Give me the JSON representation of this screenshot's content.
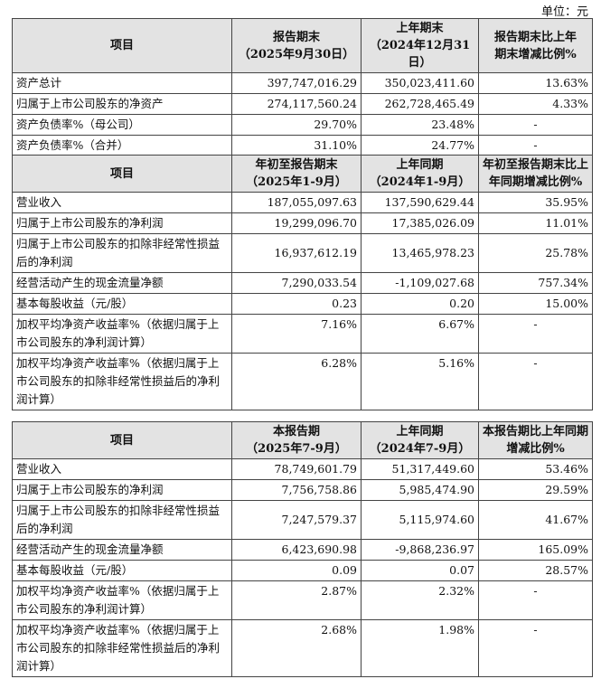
{
  "unit": "单位：元",
  "table1": {
    "headers": [
      "项目",
      "报告期末\n（2025年9月30日）",
      "上年期末\n（2024年12月31日）",
      "报告期末比上年\n期末增减比例%"
    ],
    "rows": [
      {
        "label": "资产总计",
        "v1": "397,747,016.29",
        "v2": "350,023,411.60",
        "v3": "13.63%"
      },
      {
        "label": "归属于上市公司股东的净资产",
        "v1": "274,117,560.24",
        "v2": "262,728,465.49",
        "v3": "4.33%"
      },
      {
        "label": "资产负债率%（母公司）",
        "v1": "29.70%",
        "v2": "23.48%",
        "v3": "-"
      },
      {
        "label": "资产负债率%（合并）",
        "v1": "31.10%",
        "v2": "24.77%",
        "v3": "-"
      }
    ]
  },
  "table2": {
    "headers": [
      "项目",
      "年初至报告期末\n（2025年1-9月）",
      "上年同期\n（2024年1-9月）",
      "年初至报告期末比上\n年同期增减比例%"
    ],
    "rows": [
      {
        "label": "营业收入",
        "v1": "187,055,097.63",
        "v2": "137,590,629.44",
        "v3": "35.95%"
      },
      {
        "label": "归属于上市公司股东的净利润",
        "v1": "19,299,096.70",
        "v2": "17,385,026.09",
        "v3": "11.01%"
      },
      {
        "label": "归属于上市公司股东的扣除非经常性损益后的净利润",
        "v1": "16,937,612.19",
        "v2": "13,465,978.23",
        "v3": "25.78%"
      },
      {
        "label": "经营活动产生的现金流量净额",
        "v1": "7,290,033.54",
        "v2": "-1,109,027.68",
        "v3": "757.34%"
      },
      {
        "label": "基本每股收益（元/股）",
        "v1": "0.23",
        "v2": "0.20",
        "v3": "15.00%"
      },
      {
        "label": "加权平均净资产收益率%（依据归属于上市公司股东的净利润计算）",
        "v1": "7.16%",
        "v2": "6.67%",
        "v3": "-"
      },
      {
        "label": "加权平均净资产收益率%（依据归属于上市公司股东的扣除非经常性损益后的净利润计算）",
        "v1": "6.28%",
        "v2": "5.16%",
        "v3": "-"
      }
    ]
  },
  "table3": {
    "headers": [
      "项目",
      "本报告期\n（2025年7-9月）",
      "上年同期\n（2024年7-9月）",
      "本报告期比上年同期\n增减比例%"
    ],
    "rows": [
      {
        "label": "营业收入",
        "v1": "78,749,601.79",
        "v2": "51,317,449.60",
        "v3": "53.46%"
      },
      {
        "label": "归属于上市公司股东的净利润",
        "v1": "7,756,758.86",
        "v2": "5,985,474.90",
        "v3": "29.59%"
      },
      {
        "label": "归属于上市公司股东的扣除非经常性损益后的净利润",
        "v1": "7,247,579.37",
        "v2": "5,115,974.60",
        "v3": "41.67%"
      },
      {
        "label": "经营活动产生的现金流量净额",
        "v1": "6,423,690.98",
        "v2": "-9,868,236.97",
        "v3": "165.09%"
      },
      {
        "label": "基本每股收益（元/股）",
        "v1": "0.09",
        "v2": "0.07",
        "v3": "28.57%"
      },
      {
        "label": "加权平均净资产收益率%（依据归属于上市公司股东的净利润计算）",
        "v1": "2.87%",
        "v2": "2.32%",
        "v3": "-"
      },
      {
        "label": "加权平均净资产收益率%（依据归属于上市公司股东的扣除非经常性损益后的净利润计算）",
        "v1": "2.68%",
        "v2": "1.98%",
        "v3": "-"
      }
    ]
  }
}
